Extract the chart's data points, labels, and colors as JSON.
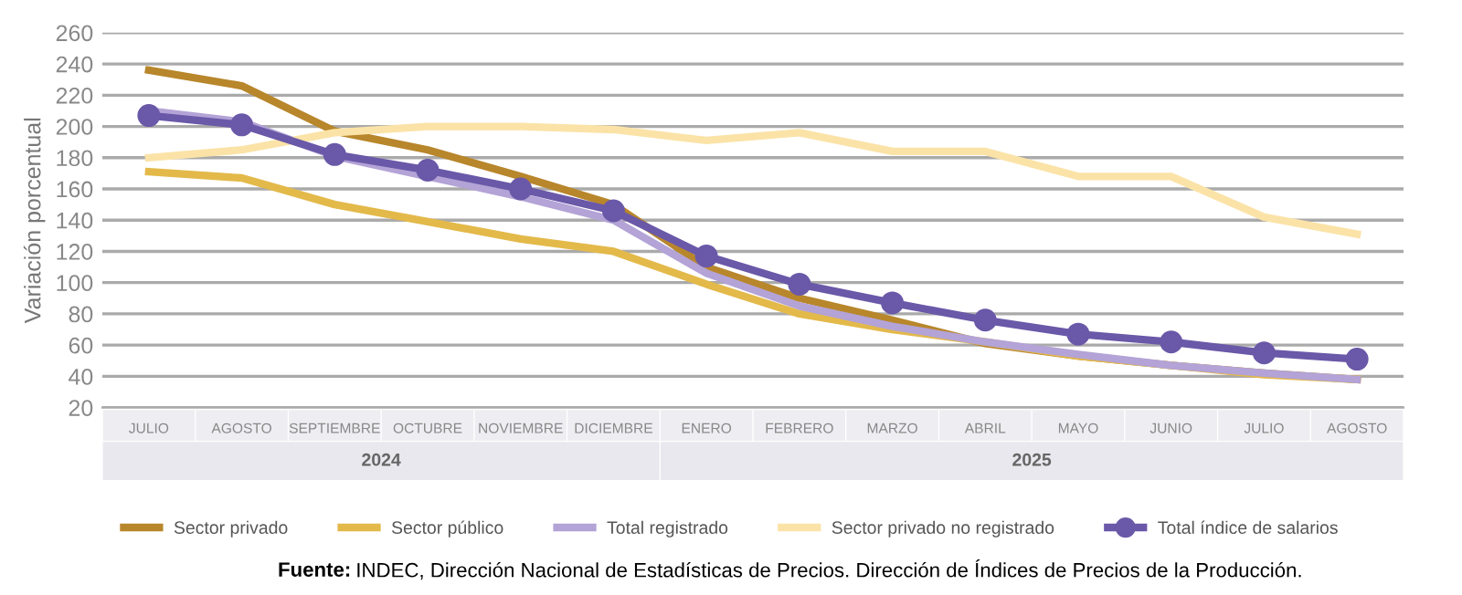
{
  "chart_data": {
    "type": "line",
    "ylabel": "Variación porcentual",
    "categories": [
      "JULIO",
      "AGOSTO",
      "SEPTIEMBRE",
      "OCTUBRE",
      "NOVIEMBRE",
      "DICIEMBRE",
      "ENERO",
      "FEBRERO",
      "MARZO",
      "ABRIL",
      "MAYO",
      "JUNIO",
      "JULIO",
      "AGOSTO"
    ],
    "series": [
      {
        "name": "Sector privado",
        "color": "#b8862b",
        "marker": "none",
        "values": [
          236,
          226,
          197,
          185,
          168,
          150,
          110,
          90,
          76,
          61,
          53,
          47,
          42,
          38
        ]
      },
      {
        "name": "Sector público",
        "color": "#e3b94a",
        "marker": "none",
        "values": [
          171,
          167,
          150,
          139,
          128,
          120,
          99,
          80,
          70,
          62,
          53,
          47,
          41,
          38
        ]
      },
      {
        "name": "Total registrado",
        "color": "#b3a3d6",
        "marker": "none",
        "values": [
          210,
          203,
          181,
          168,
          155,
          140,
          106,
          85,
          72,
          62,
          54,
          47,
          42,
          38
        ]
      },
      {
        "name": "Sector privado no registrado",
        "color": "#fbe3a8",
        "marker": "none",
        "values": [
          180,
          185,
          196,
          200,
          200,
          198,
          191,
          196,
          184,
          184,
          168,
          168,
          142,
          131
        ]
      },
      {
        "name": "Total índice de salarios",
        "color": "#6a58a8",
        "marker": "circle",
        "values": [
          207,
          201,
          182,
          172,
          160,
          146,
          117,
          99,
          87,
          76,
          67,
          62,
          55,
          51
        ]
      }
    ],
    "ylim": [
      20,
      260
    ],
    "yticks": [
      20,
      40,
      60,
      80,
      100,
      120,
      140,
      160,
      180,
      200,
      220,
      240,
      260
    ],
    "grid": "y",
    "legend": "bottom",
    "line_style": "solid",
    "annotations": [
      "2024",
      "2025",
      "Fuente: INDEC, Dirección Nacional de Estadísticas de Precios. Dirección de Índices de Precios de la Producción."
    ]
  }
}
